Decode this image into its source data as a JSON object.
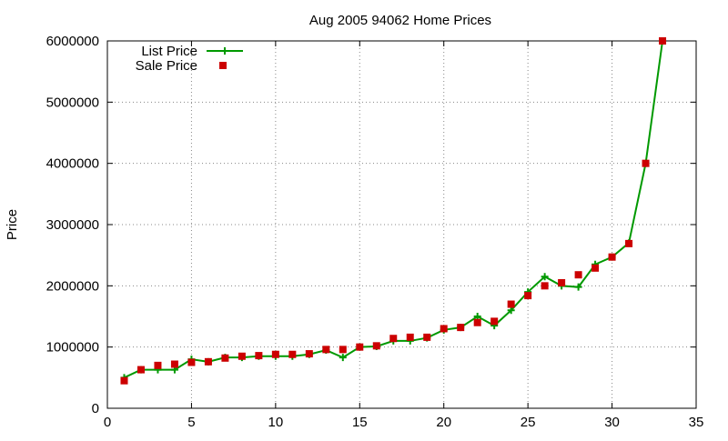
{
  "chart_data": {
    "type": "line",
    "title": "Aug 2005 94062 Home Prices",
    "xlabel": "",
    "ylabel": "Price",
    "xlim": [
      0,
      35
    ],
    "ylim": [
      0,
      6000000
    ],
    "x_ticks": [
      "0",
      "5",
      "10",
      "15",
      "20",
      "25",
      "30",
      "35"
    ],
    "y_ticks": [
      "0",
      "1000000",
      "2000000",
      "3000000",
      "4000000",
      "5000000",
      "6000000"
    ],
    "grid": true,
    "legend_position": "top-left",
    "series": [
      {
        "name": "List Price",
        "style": "line-with-plus-markers",
        "color": "#009900",
        "x": [
          1,
          2,
          3,
          4,
          5,
          6,
          7,
          8,
          9,
          10,
          11,
          12,
          13,
          14,
          15,
          16,
          17,
          18,
          19,
          20,
          21,
          22,
          23,
          24,
          25,
          26,
          27,
          28,
          29,
          30,
          31,
          32,
          33
        ],
        "y": [
          500000,
          630000,
          630000,
          630000,
          800000,
          760000,
          830000,
          830000,
          850000,
          850000,
          850000,
          880000,
          950000,
          830000,
          1000000,
          1010000,
          1100000,
          1100000,
          1150000,
          1280000,
          1320000,
          1500000,
          1350000,
          1600000,
          1900000,
          2150000,
          2000000,
          1980000,
          2350000,
          2470000,
          2700000,
          4000000,
          6000000
        ]
      },
      {
        "name": "Sale Price",
        "style": "square-markers",
        "color": "#cc0000",
        "x": [
          1,
          2,
          3,
          4,
          5,
          6,
          7,
          8,
          9,
          10,
          11,
          12,
          13,
          14,
          15,
          16,
          17,
          18,
          19,
          20,
          21,
          22,
          23,
          24,
          25,
          26,
          27,
          28,
          29,
          30,
          31,
          32,
          33
        ],
        "y": [
          450000,
          630000,
          700000,
          720000,
          750000,
          760000,
          820000,
          850000,
          860000,
          880000,
          880000,
          890000,
          960000,
          960000,
          1000000,
          1020000,
          1140000,
          1160000,
          1160000,
          1300000,
          1320000,
          1400000,
          1420000,
          1700000,
          1840000,
          2000000,
          2050000,
          2180000,
          2290000,
          2470000,
          2690000,
          4000000,
          6000000
        ]
      }
    ]
  }
}
